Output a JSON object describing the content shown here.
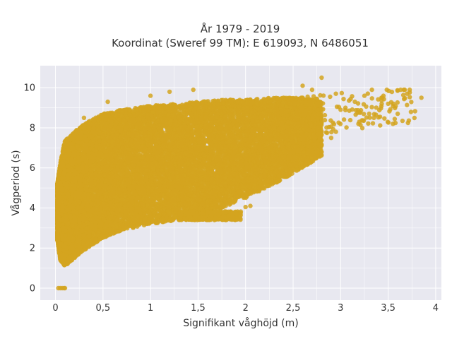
{
  "chart_data": {
    "type": "scatter",
    "title_line1": "År 1979 - 2019",
    "title_line2": "Koordinat (Sweref 99 TM): E 619093, N 6486051",
    "xlabel": "Signifikant våghöjd (m)",
    "ylabel": "Vågperiod (s)",
    "xlim": [
      -0.16,
      4.06
    ],
    "ylim": [
      -0.6,
      11.1
    ],
    "x_ticks": [
      0,
      0.5,
      1,
      1.5,
      2,
      2.5,
      3,
      3.5,
      4
    ],
    "x_tick_labels": [
      "0",
      "0,5",
      "1",
      "1,5",
      "2",
      "2,5",
      "3",
      "3,5",
      "4"
    ],
    "y_ticks": [
      0,
      2,
      4,
      6,
      8,
      10
    ],
    "y_tick_labels": [
      "0",
      "2",
      "4",
      "6",
      "8",
      "10"
    ],
    "grid": true,
    "legend": "none",
    "marker_color": "#D4A520",
    "plot_background": "#E8E8F0",
    "zero_points": [
      [
        0.03,
        0
      ],
      [
        0.05,
        0
      ],
      [
        0.07,
        0
      ],
      [
        0.09,
        0
      ],
      [
        0.1,
        0
      ]
    ],
    "outlier_points": [
      [
        2.8,
        10.5
      ],
      [
        3.45,
        9.6
      ],
      [
        3.7,
        9.7
      ],
      [
        3.85,
        9.5
      ],
      [
        3.6,
        8.7
      ],
      [
        3.55,
        8.2
      ],
      [
        3.25,
        9.6
      ],
      [
        3.3,
        8.7
      ],
      [
        3.35,
        8.5
      ],
      [
        3.05,
        9.0
      ],
      [
        2.95,
        9.7
      ],
      [
        3.15,
        9.3
      ],
      [
        2.95,
        7.8
      ],
      [
        2.9,
        7.5
      ],
      [
        2.3,
        8.0
      ],
      [
        2.2,
        7.5
      ],
      [
        1.9,
        6.9
      ],
      [
        2.05,
        4.1
      ],
      [
        2.0,
        4.05
      ],
      [
        1.8,
        3.8
      ],
      [
        1.6,
        3.8
      ],
      [
        1.7,
        3.9
      ],
      [
        0.55,
        9.3
      ],
      [
        0.6,
        8.7
      ],
      [
        0.3,
        8.5
      ],
      [
        1.2,
        9.8
      ],
      [
        1.45,
        9.9
      ],
      [
        1.0,
        9.6
      ],
      [
        2.6,
        10.1
      ],
      [
        2.7,
        9.9
      ],
      [
        3.0,
        8.9
      ],
      [
        3.5,
        9.2
      ]
    ],
    "density_envelope": {
      "x": [
        0.02,
        0.05,
        0.1,
        0.2,
        0.3,
        0.5,
        0.7,
        1.0,
        1.3,
        1.5,
        1.8,
        2.0,
        2.3,
        2.6,
        2.8
      ],
      "y_min": [
        2.4,
        1.4,
        1.1,
        1.5,
        1.9,
        2.5,
        2.9,
        3.2,
        3.4,
        3.6,
        4.1,
        4.5,
        5.2,
        6.0,
        6.6
      ],
      "y_max": [
        5.2,
        6.2,
        7.4,
        7.8,
        8.2,
        8.7,
        8.9,
        9.1,
        9.2,
        9.3,
        9.4,
        9.4,
        9.5,
        9.5,
        9.3
      ]
    },
    "shelf": {
      "x_start": 1.3,
      "x_end": 1.95,
      "y": [
        3.4,
        3.85
      ]
    },
    "sample_count": 16000
  }
}
